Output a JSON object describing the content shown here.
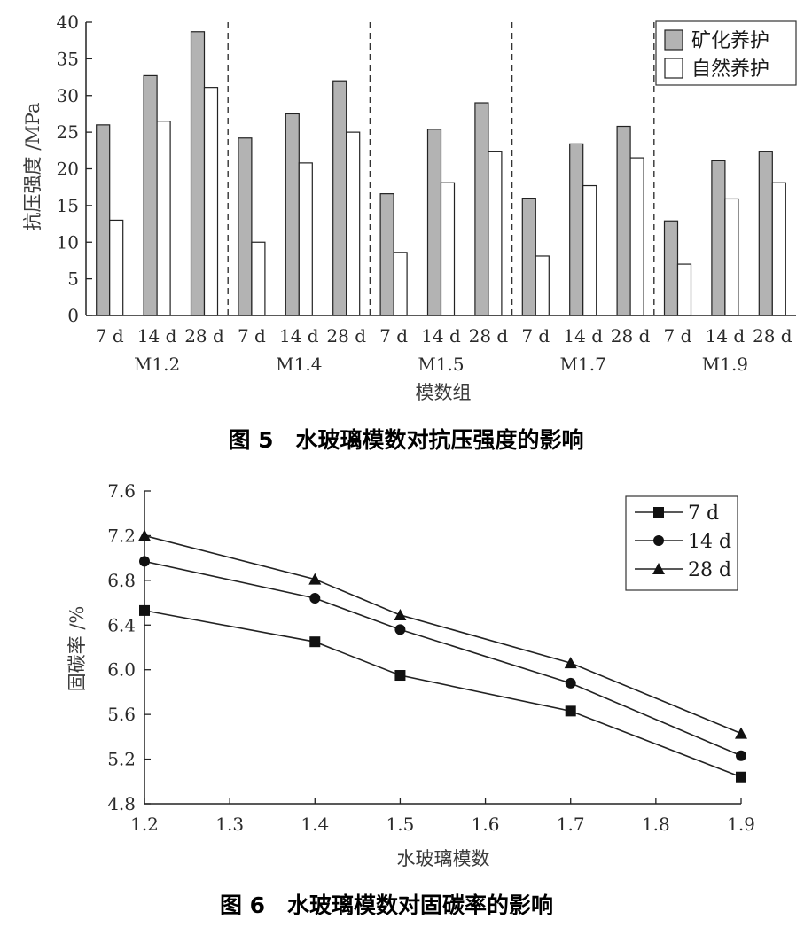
{
  "chart_data": [
    {
      "type": "bar",
      "title": "图 5　水玻璃模数对抗压强度的影响",
      "xlabel": "模数组",
      "ylabel": "抗压强度 /MPa",
      "ylim": [
        0,
        40
      ],
      "yticks": [
        "0",
        "5",
        "10",
        "15",
        "20",
        "25",
        "30",
        "35",
        "40"
      ],
      "groups": [
        "M1.2",
        "M1.4",
        "M1.5",
        "M1.7",
        "M1.9"
      ],
      "ages": [
        "7 d",
        "14 d",
        "28 d"
      ],
      "legend_position": "top-right",
      "series": [
        {
          "name": "矿化养护",
          "color": "#b3b3b3",
          "values": [
            [
              26.0,
              32.7,
              38.7
            ],
            [
              24.2,
              27.5,
              32.0
            ],
            [
              16.6,
              25.4,
              29.0
            ],
            [
              16.0,
              23.4,
              25.8
            ],
            [
              12.9,
              21.1,
              22.4
            ]
          ]
        },
        {
          "name": "自然养护",
          "color": "#ffffff",
          "values": [
            [
              13.0,
              26.5,
              31.1
            ],
            [
              10.0,
              20.8,
              25.0
            ],
            [
              8.6,
              18.1,
              22.4
            ],
            [
              8.1,
              17.7,
              21.5
            ],
            [
              7.0,
              15.9,
              18.1
            ]
          ]
        }
      ]
    },
    {
      "type": "line",
      "title": "图 6　水玻璃模数对固碳率的影响",
      "xlabel": "水玻璃模数",
      "ylabel": "固碳率 /%",
      "xlim": [
        1.2,
        1.9
      ],
      "ylim": [
        4.8,
        7.6
      ],
      "xticks": [
        "1.2",
        "1.3",
        "1.4",
        "1.5",
        "1.6",
        "1.7",
        "1.8",
        "1.9"
      ],
      "yticks": [
        "4.8",
        "5.2",
        "5.6",
        "6.0",
        "6.4",
        "6.8",
        "7.2",
        "7.6"
      ],
      "x": [
        1.2,
        1.4,
        1.5,
        1.7,
        1.9
      ],
      "legend_position": "top-right",
      "series": [
        {
          "name": "7 d",
          "marker": "square",
          "values": [
            6.53,
            6.25,
            5.95,
            5.63,
            5.04
          ]
        },
        {
          "name": "14 d",
          "marker": "circle",
          "values": [
            6.97,
            6.64,
            6.36,
            5.88,
            5.23
          ]
        },
        {
          "name": "28 d",
          "marker": "triangle",
          "values": [
            7.2,
            6.81,
            6.49,
            6.06,
            5.43
          ]
        }
      ]
    }
  ]
}
